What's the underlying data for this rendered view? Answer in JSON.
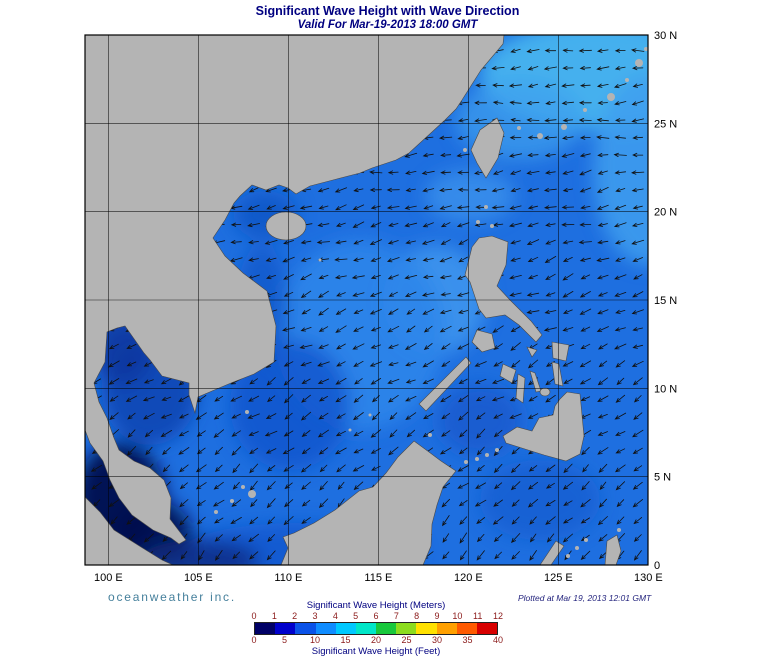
{
  "title": "Significant Wave Height with Wave Direction",
  "subtitle": "Valid For Mar-19-2013 18:00 GMT",
  "branding": "oceanweather inc.",
  "plotted_at": "Plotted at Mar 19, 2013 12:01 GMT",
  "axes": {
    "lon_labels": [
      "100 E",
      "105 E",
      "110 E",
      "115 E",
      "120 E",
      "125 E",
      "130 E"
    ],
    "lat_labels": [
      "0",
      "5 N",
      "10 N",
      "15 N",
      "20 N",
      "25 N",
      "30 N"
    ]
  },
  "legend": {
    "meters_title": "Significant Wave Height (Meters)",
    "feet_title": "Significant Wave Height (Feet)",
    "meters_ticks": [
      "0",
      "1",
      "2",
      "3",
      "4",
      "5",
      "6",
      "7",
      "8",
      "9",
      "10",
      "11",
      "12"
    ],
    "feet_ticks": [
      "0",
      "5",
      "10",
      "15",
      "20",
      "25",
      "30",
      "35",
      "40"
    ],
    "colors": [
      "#000066",
      "#0000cc",
      "#0a52e8",
      "#0f8cff",
      "#00c8ff",
      "#00e6c8",
      "#18c83c",
      "#8cdc1e",
      "#ffe100",
      "#ffa000",
      "#ff5a00",
      "#d80000"
    ],
    "tick_color": "#8b1a1a",
    "title_color": "#000080"
  },
  "map": {
    "sea_base_color": "#1e6fe0",
    "land_color": "#b4b4b4",
    "coast_color": "#4a4a4a",
    "arrow_color": "#101010"
  },
  "palette": {
    "title_color": "#000080",
    "branding_color": "#46809c",
    "plotted_color": "#24247e"
  }
}
